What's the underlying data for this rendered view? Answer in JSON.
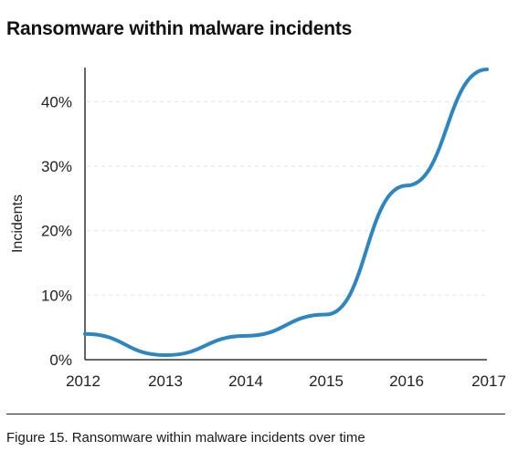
{
  "chart_data": {
    "type": "line",
    "title": "Ransomware within malware incidents",
    "xlabel": "",
    "ylabel": "Incidents",
    "x_ticks": [
      "2012",
      "2013",
      "2014",
      "2015",
      "2016",
      "2017"
    ],
    "y_ticks": [
      "0%",
      "10%",
      "20%",
      "30%",
      "40%"
    ],
    "ylim": [
      0,
      45
    ],
    "xlim": [
      2012,
      2017
    ],
    "grid": "horizontal-dashed",
    "series": [
      {
        "x": [
          2012,
          2013,
          2014,
          2015,
          2016,
          2017
        ],
        "values": [
          4,
          0.7,
          3.7,
          7,
          27,
          45
        ]
      }
    ]
  },
  "colors": {
    "line": "#2e86c1",
    "axis": "#333333",
    "grid": "#e2e2e2"
  },
  "caption": "Figure 15.  Ransomware within malware incidents over time"
}
